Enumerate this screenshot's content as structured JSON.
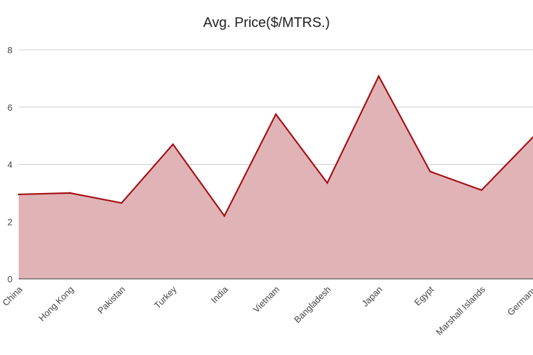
{
  "chart_data": {
    "type": "area",
    "title": "Avg. Price($/MTRS.)",
    "xlabel": "",
    "ylabel": "",
    "categories": [
      "China",
      "Hong Kong",
      "Pakistan",
      "Turkey",
      "India",
      "Vietnam",
      "Bangladesh",
      "Japan",
      "Egypt",
      "Marshall Islands",
      "Germany"
    ],
    "series": [
      {
        "values": [
          2.95,
          3.0,
          2.65,
          4.7,
          2.2,
          5.75,
          3.35,
          7.08,
          3.75,
          3.1,
          4.95
        ]
      }
    ],
    "ylim": [
      0,
      8
    ],
    "yticks": [
      0,
      2,
      4,
      6,
      8
    ],
    "grid": true,
    "legend": "none",
    "colors": {
      "line": "#a50f15",
      "fill": "#e0b4b6",
      "grid": "#cccccc",
      "axis": "#333333"
    }
  }
}
